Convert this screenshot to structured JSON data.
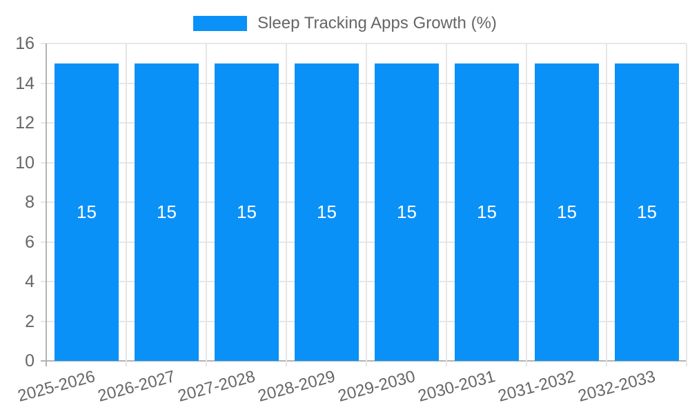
{
  "legend": {
    "label": "Sleep Tracking Apps Growth (%)"
  },
  "colors": {
    "bar": "#0991F8",
    "text": "#666666",
    "grid": "#e6e6e6",
    "axis": "#b3b3b3",
    "bar_label": "#ffffff",
    "background": "#ffffff"
  },
  "chart_data": {
    "type": "bar",
    "title": "Sleep Tracking Apps Growth (%)",
    "categories": [
      "2025-2026",
      "2026-2027",
      "2027-2028",
      "2028-2029",
      "2029-2030",
      "2030-2031",
      "2031-2032",
      "2032-2033"
    ],
    "series": [
      {
        "name": "Sleep Tracking Apps Growth (%)",
        "values": [
          15,
          15,
          15,
          15,
          15,
          15,
          15,
          15
        ]
      }
    ],
    "values": [
      15,
      15,
      15,
      15,
      15,
      15,
      15,
      15
    ],
    "bar_labels": [
      "15",
      "15",
      "15",
      "15",
      "15",
      "15",
      "15",
      "15"
    ],
    "xlabel": "",
    "ylabel": "",
    "ylim": [
      0,
      16
    ],
    "yticks": [
      0,
      2,
      4,
      6,
      8,
      10,
      12,
      14,
      16
    ],
    "grid": true,
    "legend_position": "top",
    "x_tick_rotation_deg": -15
  }
}
